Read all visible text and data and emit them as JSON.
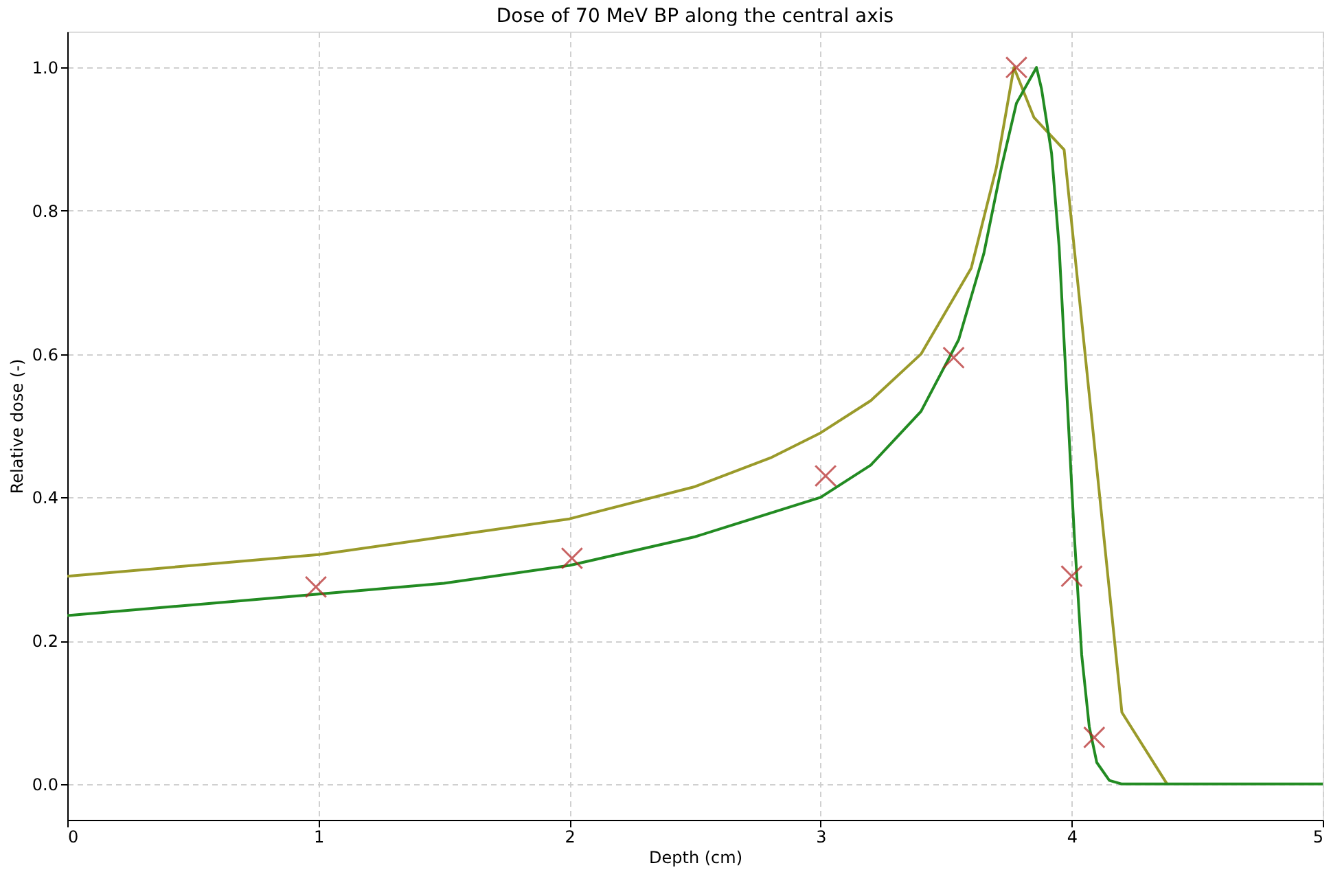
{
  "chart_data": {
    "type": "line",
    "title": "Dose of 70 MeV BP along the central axis",
    "xlabel": "Depth (cm)",
    "ylabel": "Relative dose (-)",
    "xlim": [
      0,
      5
    ],
    "xticks": [
      0,
      1,
      2,
      3,
      4,
      5
    ],
    "ylim": [
      -0.05,
      1.05
    ],
    "yticks": [
      {
        "value": 0,
        "label": "0.0"
      },
      0.2,
      0.4,
      0.6,
      0.8,
      {
        "value": 1,
        "label": "1.0"
      }
    ],
    "grid": true,
    "legend": false,
    "series": [
      {
        "type": "line",
        "color": "#9a9a2a",
        "line_style": "solid",
        "marker": "none",
        "x": [
          0,
          0.5,
          1,
          1.5,
          2,
          2.5,
          2.8,
          3,
          3.2,
          3.4,
          3.6,
          3.7,
          3.75,
          3.77,
          3.85,
          3.97,
          4.2,
          4.38
        ],
        "values": [
          0.29,
          0.305,
          0.32,
          0.345,
          0.37,
          0.415,
          0.455,
          0.49,
          0.535,
          0.6,
          0.72,
          0.86,
          0.96,
          1.0,
          0.93,
          0.885,
          0.1,
          0.0
        ]
      },
      {
        "type": "line",
        "color": "#228b22",
        "line_style": "solid",
        "marker": "none",
        "x": [
          0,
          0.5,
          1,
          1.5,
          2,
          2.5,
          3,
          3.2,
          3.4,
          3.55,
          3.65,
          3.72,
          3.78,
          3.86,
          3.88,
          3.92,
          3.95,
          3.98,
          4.01,
          4.04,
          4.07,
          4.1,
          4.15,
          4.2,
          5
        ],
        "values": [
          0.235,
          0.25,
          0.265,
          0.28,
          0.305,
          0.345,
          0.4,
          0.445,
          0.52,
          0.62,
          0.74,
          0.86,
          0.95,
          1.0,
          0.97,
          0.88,
          0.75,
          0.55,
          0.35,
          0.18,
          0.08,
          0.03,
          0.005,
          0.0,
          0.0
        ]
      },
      {
        "type": "scatter",
        "color": "#b22222",
        "marker": "cross",
        "x": [
          0.99,
          2.01,
          3.02,
          3.53,
          3.78,
          4.0,
          4.09
        ],
        "values": [
          0.275,
          0.315,
          0.43,
          0.595,
          1.0,
          0.29,
          0.065
        ]
      }
    ]
  }
}
